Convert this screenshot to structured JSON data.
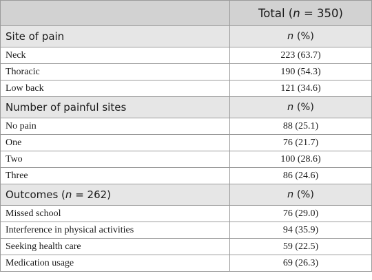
{
  "header": {
    "total_prefix": "Total (",
    "total_n": "n",
    "total_suffix": " = 350)"
  },
  "stat_label": {
    "n": "n",
    "pct": " (%)"
  },
  "sections": [
    {
      "title_prefix": "Site of pain",
      "title_n": "",
      "title_suffix": "",
      "rows": [
        {
          "label": "Neck",
          "value": "223 (63.7)"
        },
        {
          "label": "Thoracic",
          "value": "190 (54.3)"
        },
        {
          "label": "Low back",
          "value": "121 (34.6)"
        }
      ]
    },
    {
      "title_prefix": "Number of painful sites",
      "title_n": "",
      "title_suffix": "",
      "rows": [
        {
          "label": "No pain",
          "value": "88 (25.1)"
        },
        {
          "label": "One",
          "value": "76 (21.7)"
        },
        {
          "label": "Two",
          "value": "100 (28.6)"
        },
        {
          "label": "Three",
          "value": "86 (24.6)"
        }
      ]
    },
    {
      "title_prefix": "Outcomes (",
      "title_n": "n",
      "title_suffix": " = 262)",
      "rows": [
        {
          "label": "Missed school",
          "value": "76 (29.0)"
        },
        {
          "label": "Interference in physical activities",
          "value": "94 (35.9)"
        },
        {
          "label": "Seeking health care",
          "value": "59 (22.5)"
        },
        {
          "label": "Medication usage",
          "value": "69 (26.3)"
        }
      ]
    }
  ]
}
